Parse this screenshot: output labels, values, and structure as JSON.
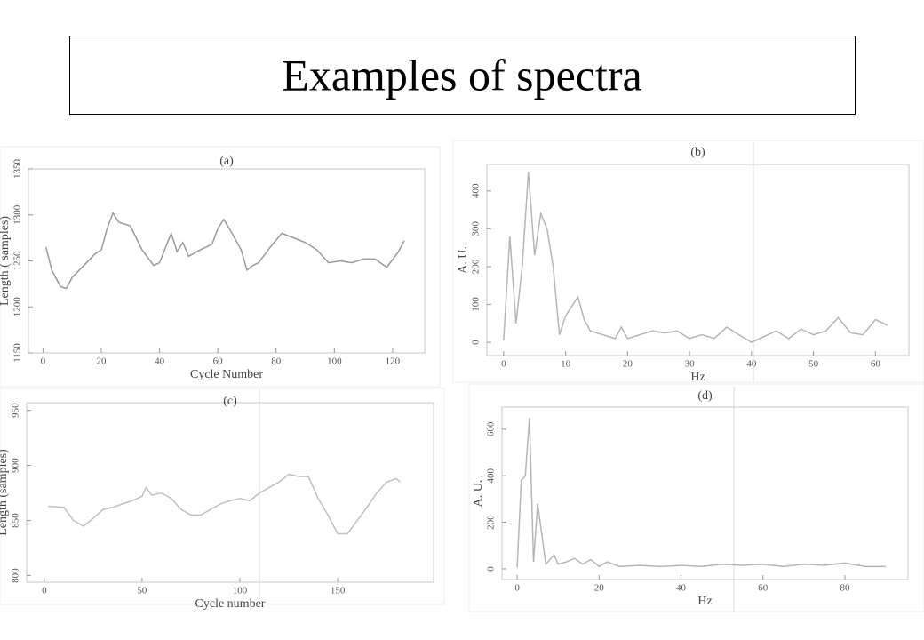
{
  "title": "Examples of spectra",
  "chart_data": [
    {
      "type": "line",
      "title": "(a)",
      "x_label": "Cycle Number",
      "y_label": "Length ( samples)",
      "color": "#9a9a9a",
      "x": [
        1,
        3,
        6,
        8,
        10,
        14,
        18,
        20,
        22,
        24,
        26,
        30,
        34,
        38,
        40,
        44,
        46,
        48,
        50,
        54,
        58,
        60,
        62,
        64,
        68,
        70,
        72,
        74,
        78,
        82,
        86,
        90,
        94,
        98,
        102,
        106,
        110,
        114,
        118,
        122,
        124
      ],
      "values": [
        1265,
        1240,
        1222,
        1220,
        1232,
        1245,
        1258,
        1262,
        1285,
        1302,
        1292,
        1288,
        1262,
        1245,
        1248,
        1280,
        1260,
        1270,
        1255,
        1262,
        1268,
        1285,
        1295,
        1285,
        1262,
        1240,
        1245,
        1248,
        1265,
        1280,
        1275,
        1270,
        1262,
        1248,
        1250,
        1248,
        1252,
        1252,
        1243,
        1260,
        1272
      ],
      "xlim": [
        -5,
        131
      ],
      "ylim": [
        1150,
        1350
      ],
      "xticks": [
        0,
        20,
        40,
        60,
        80,
        100,
        120
      ],
      "yticks": [
        1150,
        1200,
        1250,
        1300,
        1350
      ]
    },
    {
      "type": "line",
      "title": "(b)",
      "x_label": "Hz",
      "y_label": "A. U.",
      "color": "#b5b5b5",
      "x": [
        0,
        1,
        2,
        3,
        4,
        5,
        6,
        7,
        8,
        9,
        10,
        12,
        13,
        14,
        16,
        18,
        19,
        20,
        22,
        24,
        26,
        28,
        30,
        32,
        34,
        36,
        38,
        40,
        42,
        44,
        46,
        48,
        50,
        52,
        54,
        56,
        58,
        60,
        62
      ],
      "values": [
        5,
        280,
        50,
        200,
        450,
        230,
        340,
        300,
        200,
        20,
        70,
        120,
        60,
        30,
        20,
        10,
        40,
        10,
        20,
        30,
        25,
        30,
        10,
        20,
        10,
        40,
        20,
        0,
        15,
        30,
        10,
        35,
        20,
        30,
        65,
        25,
        20,
        60,
        45
      ],
      "xlim": [
        -2.7,
        65.4
      ],
      "ylim": [
        -35,
        470
      ],
      "xticks": [
        0,
        10,
        20,
        30,
        40,
        50,
        60
      ],
      "yticks": [
        0,
        100,
        200,
        300,
        400
      ]
    },
    {
      "type": "line",
      "title": "(c)",
      "x_label": "Cycle number",
      "y_label": "Length (samples)",
      "color": "#c0c0c0",
      "x": [
        2,
        10,
        15,
        20,
        25,
        30,
        35,
        40,
        45,
        50,
        52,
        55,
        60,
        65,
        70,
        75,
        80,
        85,
        90,
        95,
        100,
        105,
        110,
        115,
        120,
        125,
        130,
        135,
        140,
        145,
        150,
        155,
        160,
        165,
        170,
        175,
        180,
        182
      ],
      "values": [
        863,
        862,
        850,
        845,
        852,
        860,
        862,
        865,
        868,
        872,
        880,
        873,
        875,
        870,
        860,
        855,
        855,
        860,
        865,
        868,
        870,
        868,
        875,
        880,
        885,
        892,
        890,
        890,
        870,
        855,
        838,
        838,
        850,
        862,
        875,
        885,
        888,
        885
      ],
      "xlim": [
        -9,
        199
      ],
      "ylim": [
        794,
        957
      ],
      "xticks": [
        0,
        50,
        100,
        150
      ],
      "yticks": [
        800,
        850,
        900,
        950
      ]
    },
    {
      "type": "line",
      "title": "(d)",
      "x_label": "Hz",
      "y_label": "A. U.",
      "color": "#b5b5b5",
      "x": [
        0,
        1,
        2,
        3,
        4,
        5,
        6,
        7,
        8,
        9,
        10,
        12,
        14,
        16,
        18,
        20,
        22,
        25,
        30,
        35,
        40,
        45,
        50,
        55,
        60,
        65,
        70,
        75,
        80,
        85,
        90
      ],
      "values": [
        5,
        380,
        400,
        650,
        30,
        280,
        150,
        20,
        40,
        60,
        20,
        30,
        45,
        20,
        40,
        10,
        30,
        10,
        15,
        10,
        15,
        10,
        20,
        15,
        20,
        10,
        20,
        15,
        25,
        10,
        10
      ],
      "xlim": [
        -3.7,
        95.4
      ],
      "ylim": [
        -46,
        695
      ],
      "xticks": [
        0,
        20,
        40,
        60,
        80
      ],
      "yticks": [
        0,
        200,
        400,
        600
      ]
    }
  ]
}
